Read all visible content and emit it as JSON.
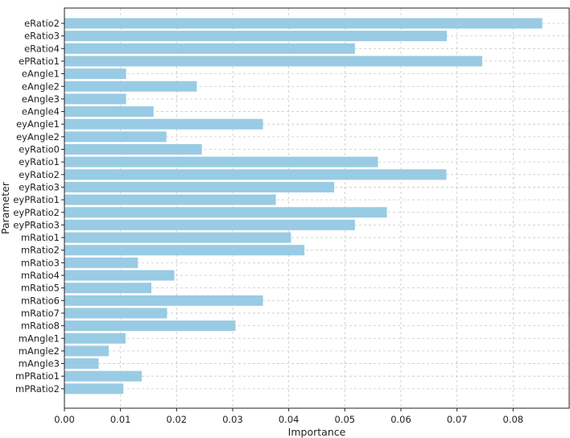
{
  "chart_data": {
    "type": "bar",
    "orientation": "horizontal",
    "title": "",
    "xlabel": "Importance",
    "ylabel": "Parameter",
    "xlim": [
      0,
      0.09
    ],
    "xticks": [
      0.0,
      0.01,
      0.02,
      0.03,
      0.04,
      0.05,
      0.06,
      0.07,
      0.08
    ],
    "xtick_labels": [
      "0.00",
      "0.01",
      "0.02",
      "0.03",
      "0.04",
      "0.05",
      "0.06",
      "0.07",
      "0.08"
    ],
    "grid": true,
    "bar_color": "#99cbe4",
    "categories": [
      "eRatio2",
      "eRatio3",
      "eRatio4",
      "ePRatio1",
      "eAngle1",
      "eAngle2",
      "eAngle3",
      "eAngle4",
      "eyAngle1",
      "eyAngle2",
      "eyRatio0",
      "eyRatio1",
      "eyRatio2",
      "eyRatio3",
      "eyPRatio1",
      "eyPRatio2",
      "eyPRatio3",
      "mRatio1",
      "mRatio2",
      "mRatio3",
      "mRatio4",
      "mRatio5",
      "mRatio6",
      "mRatio7",
      "mRatio8",
      "mAngle1",
      "mAngle2",
      "mAngle3",
      "mPRatio1",
      "mPRatio2"
    ],
    "values": [
      0.0852,
      0.0682,
      0.0518,
      0.0745,
      0.011,
      0.0236,
      0.011,
      0.0159,
      0.0354,
      0.0182,
      0.0245,
      0.0559,
      0.0681,
      0.0481,
      0.0377,
      0.0575,
      0.0518,
      0.0404,
      0.0428,
      0.0131,
      0.0196,
      0.0155,
      0.0354,
      0.0183,
      0.0305,
      0.0109,
      0.0079,
      0.0061,
      0.0138,
      0.0105
    ]
  }
}
